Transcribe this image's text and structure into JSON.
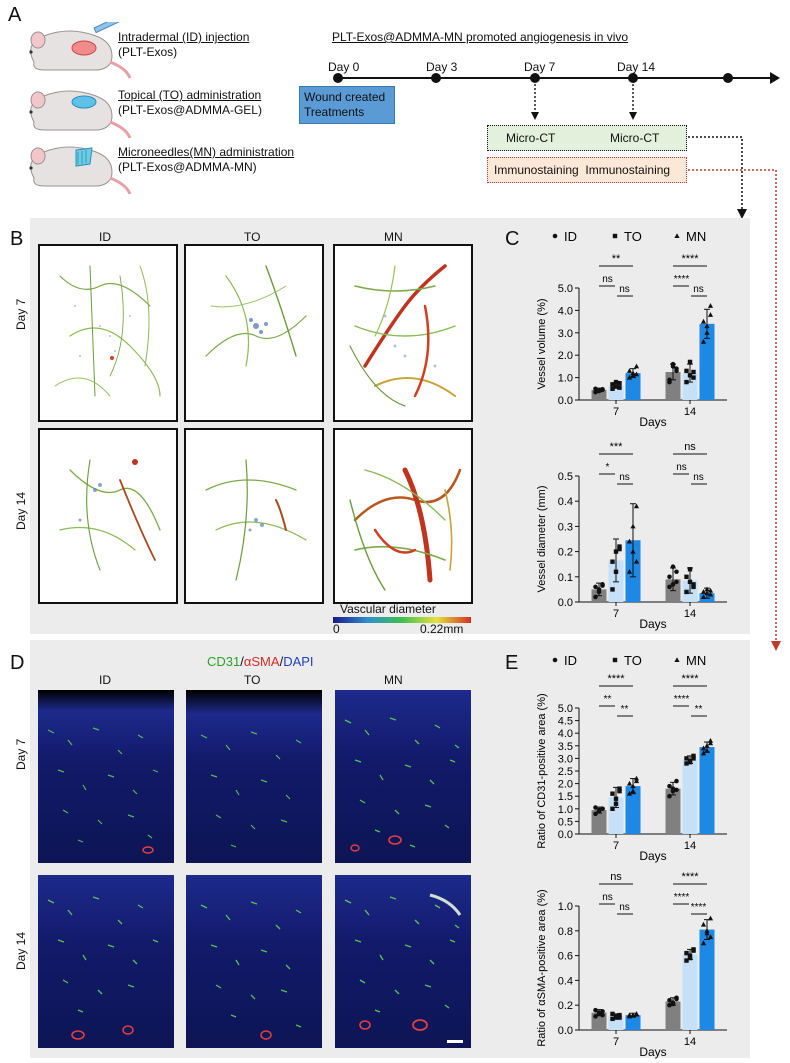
{
  "panels": {
    "a": "A",
    "b": "B",
    "c": "C",
    "d": "D",
    "e": "E"
  },
  "panel_a": {
    "title": "PLT-Exos@ADMMA-MN promoted angiogenesis in vivo",
    "groups": [
      {
        "line1": "Intradermal (ID) injection",
        "line2": "(PLT-Exos)"
      },
      {
        "line1": "Topical (TO) administration",
        "line2": "(PLT-Exos@ADMMA-GEL)"
      },
      {
        "line1": "Microneedles(MN) administration",
        "line2": "(PLT-Exos@ADMMA-MN)"
      }
    ],
    "timeline": [
      "Day 0",
      "Day 3",
      "Day 7",
      "Day 14"
    ],
    "wound_label": "Wound created\nTreatments",
    "microct_left": "Micro-CT",
    "microct_right": "Micro-CT",
    "immuno": "Immunostaining  Immunostaining"
  },
  "panel_b": {
    "cols": [
      "ID",
      "TO",
      "MN"
    ],
    "rows": [
      "Day 7",
      "Day 14"
    ],
    "colorbar_title": "Vascular diameter",
    "colorbar_min": "0",
    "colorbar_max": "0.22mm"
  },
  "panel_d": {
    "stain_cd31": "CD31",
    "stain_sep1": "/",
    "stain_asma": "αSMA",
    "stain_sep2": "/",
    "stain_dapi": "DAPI",
    "cols": [
      "ID",
      "TO",
      "MN"
    ],
    "rows": [
      "Day 7",
      "Day 14"
    ]
  },
  "colors": {
    "ID": "#808080",
    "TO": "#c5e0f7",
    "MN": "#1e88e5",
    "arrow_red": "#c0392b"
  },
  "chart_data": [
    {
      "id": "vessel-volume",
      "type": "bar",
      "categories": [
        "7",
        "14"
      ],
      "legend": [
        "ID",
        "TO",
        "MN"
      ],
      "series": [
        {
          "name": "ID",
          "values": [
            0.45,
            1.25
          ],
          "err": [
            0.08,
            0.35
          ],
          "points": [
            [
              0.35,
              0.42,
              0.48,
              0.5,
              0.4,
              0.45
            ],
            [
              0.8,
              1.6,
              1.3,
              0.9,
              1.5,
              1.4
            ]
          ]
        },
        {
          "name": "TO",
          "values": [
            0.65,
            1.2
          ],
          "err": [
            0.12,
            0.4
          ],
          "points": [
            [
              0.5,
              0.6,
              0.75,
              0.7,
              0.8,
              0.55
            ],
            [
              0.8,
              1.7,
              1.0,
              1.3,
              1.1,
              1.25
            ]
          ]
        },
        {
          "name": "MN",
          "values": [
            1.2,
            3.4
          ],
          "err": [
            0.2,
            0.65
          ],
          "points": [
            [
              1.0,
              1.1,
              1.5,
              1.3,
              1.2,
              1.15
            ],
            [
              2.6,
              3.0,
              4.2,
              3.5,
              3.3,
              3.8
            ]
          ]
        }
      ],
      "ylabel": "Vessel volume (%)",
      "xlabel": "Days",
      "ylim": [
        0,
        5
      ],
      "yticks": [
        "0.0",
        "1.0",
        "2.0",
        "3.0",
        "4.0",
        "5.0"
      ],
      "sig": {
        "g7": [
          "**",
          "ns",
          "ns"
        ],
        "g14": [
          "****",
          "****",
          "ns"
        ]
      }
    },
    {
      "id": "vessel-diameter",
      "type": "bar",
      "categories": [
        "7",
        "14"
      ],
      "series": [
        {
          "name": "ID",
          "values": [
            0.05,
            0.09
          ],
          "err": [
            0.025,
            0.045
          ],
          "points": [
            [
              0.02,
              0.05,
              0.07,
              0.06,
              0.04,
              0.065
            ],
            [
              0.06,
              0.14,
              0.08,
              0.1,
              0.07,
              0.12
            ]
          ]
        },
        {
          "name": "TO",
          "values": [
            0.165,
            0.085
          ],
          "err": [
            0.085,
            0.05
          ],
          "points": [
            [
              0.05,
              0.2,
              0.22,
              0.16,
              0.12,
              0.21
            ],
            [
              0.04,
              0.13,
              0.06,
              0.1,
              0.08,
              0.07
            ]
          ]
        },
        {
          "name": "MN",
          "values": [
            0.245,
            0.035
          ],
          "err": [
            0.145,
            0.02
          ],
          "points": [
            [
              0.12,
              0.3,
              0.38,
              0.24,
              0.2,
              0.16
            ],
            [
              0.02,
              0.05,
              0.03,
              0.04,
              0.035,
              0.045
            ]
          ]
        }
      ],
      "ylabel": "Vessel diameter (mm)",
      "xlabel": "Days",
      "ylim": [
        0,
        0.5
      ],
      "yticks": [
        "0.0",
        "0.1",
        "0.2",
        "0.3",
        "0.4",
        "0.5"
      ],
      "sig": {
        "g7": [
          "***",
          "*",
          "ns"
        ],
        "g14": [
          "ns",
          "ns",
          "ns"
        ]
      }
    },
    {
      "id": "cd31-area",
      "type": "bar",
      "categories": [
        "7",
        "14"
      ],
      "legend": [
        "ID",
        "TO",
        "MN"
      ],
      "series": [
        {
          "name": "ID",
          "values": [
            0.95,
            1.8
          ],
          "err": [
            0.12,
            0.25
          ],
          "points": [
            [
              0.8,
              0.9,
              1.0,
              1.05,
              0.95,
              1.0
            ],
            [
              1.5,
              1.7,
              2.1,
              1.9,
              1.8,
              1.75
            ]
          ]
        },
        {
          "name": "TO",
          "values": [
            1.45,
            2.95
          ],
          "err": [
            0.4,
            0.15
          ],
          "points": [
            [
              1.0,
              1.2,
              1.8,
              1.6,
              1.4,
              1.7
            ],
            [
              2.8,
              2.9,
              3.1,
              3.0,
              2.85,
              3.0
            ]
          ]
        },
        {
          "name": "MN",
          "values": [
            1.9,
            3.45
          ],
          "err": [
            0.3,
            0.2
          ],
          "points": [
            [
              1.6,
              1.7,
              2.2,
              2.0,
              1.9,
              2.1
            ],
            [
              3.2,
              3.5,
              3.7,
              3.4,
              3.3,
              3.6
            ]
          ]
        }
      ],
      "ylabel": "Ratio of CD31-positive area (%)",
      "xlabel": "Days",
      "ylim": [
        0,
        5
      ],
      "yticks": [
        "0.0",
        "0.5",
        "1.0",
        "1.5",
        "2.0",
        "2.5",
        "3.0",
        "3.5",
        "4.0",
        "4.5",
        "5.0"
      ],
      "sig": {
        "g7": [
          "****",
          "**",
          "**"
        ],
        "g14": [
          "****",
          "****",
          "**"
        ]
      }
    },
    {
      "id": "asma-area",
      "type": "bar",
      "categories": [
        "7",
        "14"
      ],
      "series": [
        {
          "name": "ID",
          "values": [
            0.14,
            0.23
          ],
          "err": [
            0.025,
            0.03
          ],
          "points": [
            [
              0.11,
              0.13,
              0.15,
              0.16,
              0.14,
              0.12
            ],
            [
              0.2,
              0.22,
              0.26,
              0.24,
              0.21,
              0.25
            ]
          ]
        },
        {
          "name": "TO",
          "values": [
            0.11,
            0.61
          ],
          "err": [
            0.02,
            0.04
          ],
          "points": [
            [
              0.09,
              0.1,
              0.12,
              0.13,
              0.11,
              0.1
            ],
            [
              0.56,
              0.6,
              0.65,
              0.62,
              0.58,
              0.64
            ]
          ]
        },
        {
          "name": "MN",
          "values": [
            0.12,
            0.81
          ],
          "err": [
            0.015,
            0.08
          ],
          "points": [
            [
              0.11,
              0.12,
              0.13,
              0.12,
              0.115,
              0.125
            ],
            [
              0.7,
              0.78,
              0.9,
              0.85,
              0.8,
              0.75
            ]
          ]
        }
      ],
      "ylabel": "Ratio of αSMA-positive area (%)",
      "xlabel": "Days",
      "ylim": [
        0,
        1.0
      ],
      "yticks": [
        "0.0",
        "0.2",
        "0.4",
        "0.6",
        "0.8",
        "1.0"
      ],
      "sig": {
        "g7": [
          "ns",
          "ns",
          "ns"
        ],
        "g14": [
          "****",
          "****",
          "****"
        ]
      }
    }
  ]
}
